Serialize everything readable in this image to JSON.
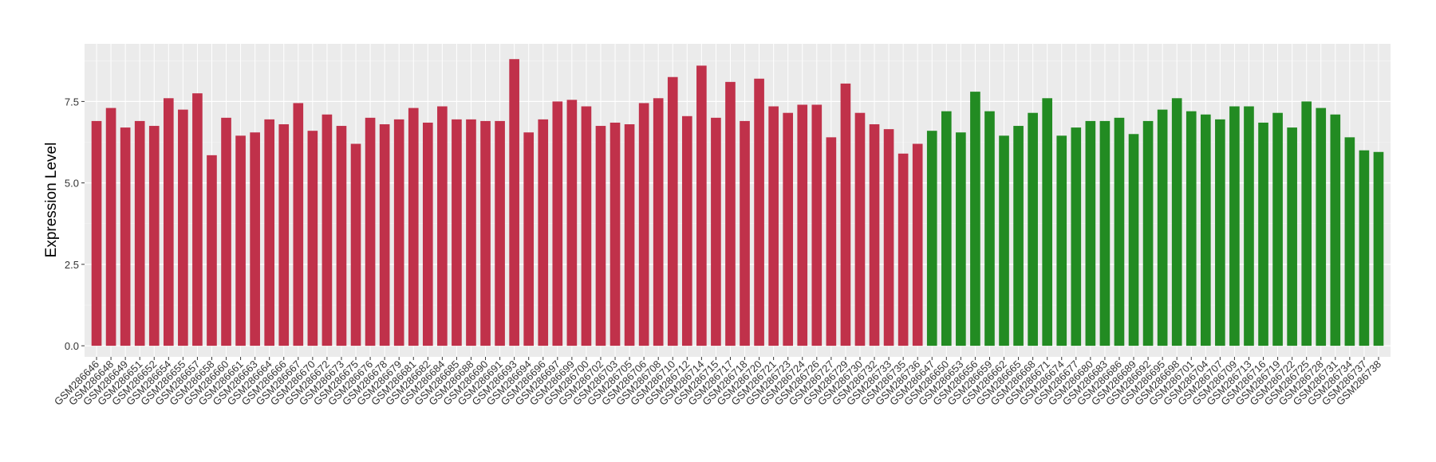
{
  "chart_data": {
    "type": "bar",
    "y_label": "Expression Level",
    "categories": [
      "GSM286646",
      "GSM286648",
      "GSM286649",
      "GSM286651",
      "GSM286652",
      "GSM286654",
      "GSM286655",
      "GSM286657",
      "GSM286658",
      "GSM286660",
      "GSM286661",
      "GSM286663",
      "GSM286664",
      "GSM286666",
      "GSM286667",
      "GSM286670",
      "GSM286672",
      "GSM286673",
      "GSM286675",
      "GSM286676",
      "GSM286678",
      "GSM286679",
      "GSM286681",
      "GSM286682",
      "GSM286684",
      "GSM286685",
      "GSM286688",
      "GSM286690",
      "GSM286691",
      "GSM286693",
      "GSM286694",
      "GSM286696",
      "GSM286697",
      "GSM286699",
      "GSM286700",
      "GSM286702",
      "GSM286703",
      "GSM286705",
      "GSM286706",
      "GSM286708",
      "GSM286710",
      "GSM286712",
      "GSM286714",
      "GSM286715",
      "GSM286717",
      "GSM286718",
      "GSM286720",
      "GSM286721",
      "GSM286723",
      "GSM286724",
      "GSM286726",
      "GSM286727",
      "GSM286729",
      "GSM286730",
      "GSM286732",
      "GSM286733",
      "GSM286735",
      "GSM286736",
      "GSM286647",
      "GSM286650",
      "GSM286653",
      "GSM286656",
      "GSM286659",
      "GSM286662",
      "GSM286665",
      "GSM286668",
      "GSM286671",
      "GSM286674",
      "GSM286677",
      "GSM286680",
      "GSM286683",
      "GSM286686",
      "GSM286689",
      "GSM286692",
      "GSM286695",
      "GSM286698",
      "GSM286701",
      "GSM286704",
      "GSM286707",
      "GSM286709",
      "GSM286713",
      "GSM286716",
      "GSM286719",
      "GSM286722",
      "GSM286725",
      "GSM286728",
      "GSM286731",
      "GSM286734",
      "GSM286737",
      "GSM286738"
    ],
    "values": [
      6.9,
      7.3,
      6.7,
      6.9,
      6.75,
      7.6,
      7.25,
      7.75,
      5.85,
      7.0,
      6.45,
      6.55,
      6.95,
      6.8,
      7.45,
      6.6,
      7.1,
      6.75,
      6.2,
      7.0,
      6.8,
      6.95,
      7.3,
      6.85,
      7.35,
      6.95,
      6.95,
      6.9,
      6.9,
      8.8,
      6.55,
      6.95,
      7.5,
      7.55,
      7.35,
      6.75,
      6.85,
      6.8,
      7.45,
      7.6,
      8.25,
      7.05,
      8.6,
      7.0,
      8.1,
      6.9,
      8.2,
      7.35,
      7.15,
      7.4,
      7.4,
      6.4,
      8.05,
      7.15,
      6.8,
      6.65,
      5.9,
      6.2,
      6.6,
      7.2,
      6.55,
      7.8,
      7.2,
      6.45,
      6.75,
      7.15,
      7.6,
      6.45,
      6.7,
      6.9,
      6.9,
      7.0,
      6.5,
      6.9,
      7.25,
      7.6,
      7.2,
      7.1,
      6.95,
      7.35,
      7.35,
      6.85,
      7.15,
      6.7,
      7.5,
      7.3,
      7.1,
      6.4,
      6.0,
      5.95
    ],
    "bar_colors": [
      "#c0314a",
      "#c0314a",
      "#c0314a",
      "#c0314a",
      "#c0314a",
      "#c0314a",
      "#c0314a",
      "#c0314a",
      "#c0314a",
      "#c0314a",
      "#c0314a",
      "#c0314a",
      "#c0314a",
      "#c0314a",
      "#c0314a",
      "#c0314a",
      "#c0314a",
      "#c0314a",
      "#c0314a",
      "#c0314a",
      "#c0314a",
      "#c0314a",
      "#c0314a",
      "#c0314a",
      "#c0314a",
      "#c0314a",
      "#c0314a",
      "#c0314a",
      "#c0314a",
      "#c0314a",
      "#c0314a",
      "#c0314a",
      "#c0314a",
      "#c0314a",
      "#c0314a",
      "#c0314a",
      "#c0314a",
      "#c0314a",
      "#c0314a",
      "#c0314a",
      "#c0314a",
      "#c0314a",
      "#c0314a",
      "#c0314a",
      "#c0314a",
      "#c0314a",
      "#c0314a",
      "#c0314a",
      "#c0314a",
      "#c0314a",
      "#c0314a",
      "#c0314a",
      "#c0314a",
      "#c0314a",
      "#c0314a",
      "#c0314a",
      "#c0314a",
      "#c0314a",
      "#228b22",
      "#228b22",
      "#228b22",
      "#228b22",
      "#228b22",
      "#228b22",
      "#228b22",
      "#228b22",
      "#228b22",
      "#228b22",
      "#228b22",
      "#228b22",
      "#228b22",
      "#228b22",
      "#228b22",
      "#228b22",
      "#228b22",
      "#228b22",
      "#228b22",
      "#228b22",
      "#228b22",
      "#228b22",
      "#228b22",
      "#228b22",
      "#228b22",
      "#228b22",
      "#228b22",
      "#228b22",
      "#228b22",
      "#228b22",
      "#228b22",
      "#228b22"
    ],
    "ylim": [
      -0.34,
      9.27
    ],
    "yticks": [
      {
        "value": 0,
        "label": "0.0"
      },
      {
        "value": 2.5,
        "label": "2.5"
      },
      {
        "value": 5,
        "label": "5.0"
      },
      {
        "value": 7.5,
        "label": "7.5"
      }
    ],
    "grid": true
  }
}
